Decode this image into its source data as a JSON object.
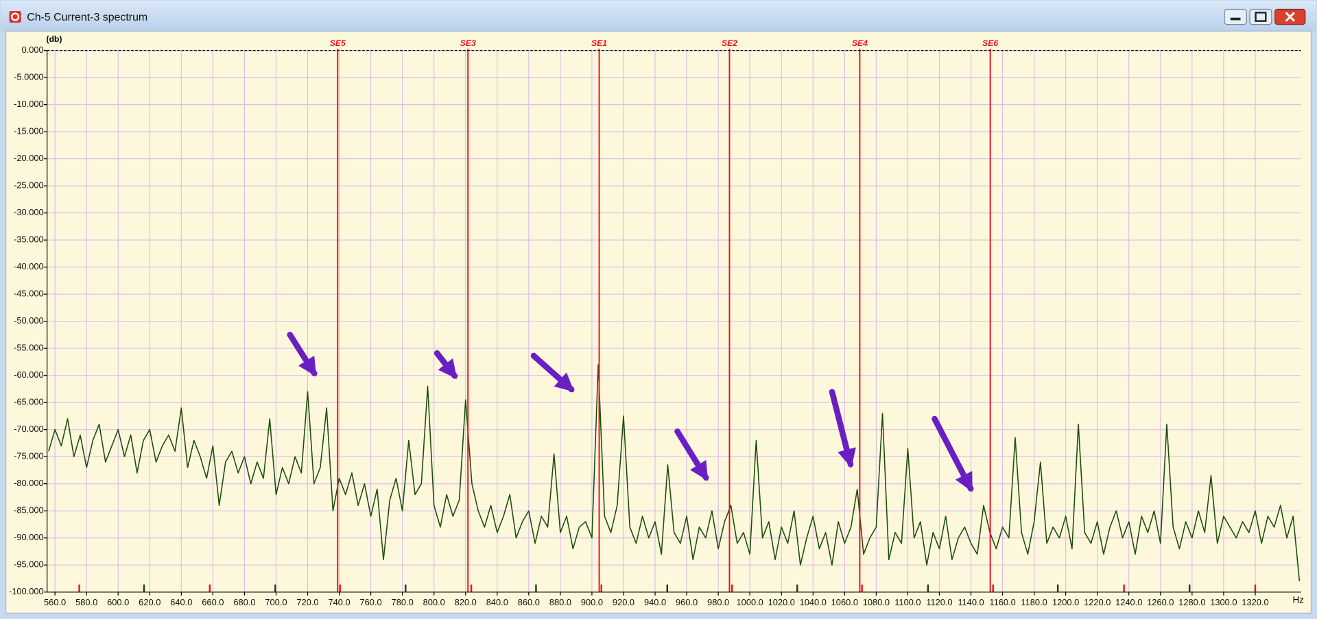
{
  "chart_data": {
    "type": "line",
    "title": "Ch-5 Current-3 spectrum",
    "ylabel": "(db)",
    "xlabel": "Hz",
    "color": "#1f4f0c",
    "grid": true,
    "xlim": [
      555,
      1349
    ],
    "ylim": [
      -100,
      0
    ],
    "xticks": [
      {
        "value": 560,
        "label": "560.0"
      },
      {
        "value": 580,
        "label": "580.0"
      },
      {
        "value": 600,
        "label": "600.0"
      },
      {
        "value": 620,
        "label": "620.0"
      },
      {
        "value": 640,
        "label": "640.0"
      },
      {
        "value": 660,
        "label": "660.0"
      },
      {
        "value": 680,
        "label": "680.0"
      },
      {
        "value": 700,
        "label": "700.0"
      },
      {
        "value": 720,
        "label": "720.0"
      },
      {
        "value": 740,
        "label": "740.0"
      },
      {
        "value": 760,
        "label": "760.0"
      },
      {
        "value": 780,
        "label": "780.0"
      },
      {
        "value": 800,
        "label": "800.0"
      },
      {
        "value": 820,
        "label": "820.0"
      },
      {
        "value": 840,
        "label": "840.0"
      },
      {
        "value": 860,
        "label": "860.0"
      },
      {
        "value": 880,
        "label": "880.0"
      },
      {
        "value": 900,
        "label": "900.0"
      },
      {
        "value": 920,
        "label": "920.0"
      },
      {
        "value": 940,
        "label": "940.0"
      },
      {
        "value": 960,
        "label": "960.0"
      },
      {
        "value": 980,
        "label": "980.0"
      },
      {
        "value": 1000,
        "label": "1000.0"
      },
      {
        "value": 1020,
        "label": "1020.0"
      },
      {
        "value": 1040,
        "label": "1040.0"
      },
      {
        "value": 1060,
        "label": "1060.0"
      },
      {
        "value": 1080,
        "label": "1080.0"
      },
      {
        "value": 1100,
        "label": "1100.0"
      },
      {
        "value": 1120,
        "label": "1120.0"
      },
      {
        "value": 1140,
        "label": "1140.0"
      },
      {
        "value": 1160,
        "label": "1160.0"
      },
      {
        "value": 1180,
        "label": "1180.0"
      },
      {
        "value": 1200,
        "label": "1200.0"
      },
      {
        "value": 1220,
        "label": "1220.0"
      },
      {
        "value": 1240,
        "label": "1240.0"
      },
      {
        "value": 1260,
        "label": "1260.0"
      },
      {
        "value": 1280,
        "label": "1280.0"
      },
      {
        "value": 1300,
        "label": "1300.0"
      },
      {
        "value": 1320,
        "label": "1320.0"
      }
    ],
    "yticks": [
      {
        "value": 0,
        "label": "0.000"
      },
      {
        "value": -5,
        "label": "-5.0000"
      },
      {
        "value": -10,
        "label": "-10.000"
      },
      {
        "value": -15,
        "label": "-15.000"
      },
      {
        "value": -20,
        "label": "-20.000"
      },
      {
        "value": -25,
        "label": "-25.000"
      },
      {
        "value": -30,
        "label": "-30.000"
      },
      {
        "value": -35,
        "label": "-35.000"
      },
      {
        "value": -40,
        "label": "-40.000"
      },
      {
        "value": -45,
        "label": "-45.000"
      },
      {
        "value": -50,
        "label": "-50.000"
      },
      {
        "value": -55,
        "label": "-55.000"
      },
      {
        "value": -60,
        "label": "-60.000"
      },
      {
        "value": -65,
        "label": "-65.000"
      },
      {
        "value": -70,
        "label": "-70.000"
      },
      {
        "value": -75,
        "label": "-75.000"
      },
      {
        "value": -80,
        "label": "-80.000"
      },
      {
        "value": -85,
        "label": "-85.000"
      },
      {
        "value": -90,
        "label": "-90.000"
      },
      {
        "value": -95,
        "label": "-95.000"
      },
      {
        "value": -100,
        "label": "-100.000"
      }
    ],
    "markers": [
      {
        "label": "SE5",
        "x": 739
      },
      {
        "label": "SE3",
        "x": 821.5
      },
      {
        "label": "SE1",
        "x": 904.6
      },
      {
        "label": "SE2",
        "x": 987.1
      },
      {
        "label": "SE4",
        "x": 1069.6
      },
      {
        "label": "SE6",
        "x": 1152.2
      }
    ],
    "marker_color": "#e8141c",
    "red_ticks": [
      575.4,
      658,
      740.5,
      823.6,
      906,
      988.7,
      1071,
      1154,
      1236.9,
      1320
    ],
    "dark_ticks": [
      616.4,
      699.5,
      782,
      864.6,
      947.7,
      1030,
      1112.8,
      1195,
      1278.4
    ],
    "x": [
      556,
      560,
      564,
      568,
      572,
      576,
      580,
      584,
      588,
      592,
      596,
      600,
      604,
      608,
      612,
      616,
      620,
      624,
      628,
      632,
      636,
      640,
      644,
      648,
      652,
      656,
      660,
      664,
      668,
      672,
      676,
      680,
      684,
      688,
      692,
      696,
      700,
      704,
      708,
      712,
      716,
      720,
      724,
      728,
      732,
      736,
      740,
      744,
      748,
      752,
      756,
      760,
      764,
      768,
      772,
      776,
      780,
      784,
      788,
      792,
      796,
      800,
      804,
      808,
      812,
      816,
      820,
      824,
      828,
      832,
      836,
      840,
      844,
      848,
      852,
      856,
      860,
      864,
      868,
      872,
      876,
      880,
      884,
      888,
      892,
      896,
      900,
      904,
      908,
      912,
      916,
      920,
      924,
      928,
      932,
      936,
      940,
      944,
      948,
      952,
      956,
      960,
      964,
      968,
      972,
      976,
      980,
      984,
      988,
      992,
      996,
      1000,
      1004,
      1008,
      1012,
      1016,
      1020,
      1024,
      1028,
      1032,
      1036,
      1040,
      1044,
      1048,
      1052,
      1056,
      1060,
      1064,
      1068,
      1072,
      1076,
      1080,
      1084,
      1088,
      1092,
      1096,
      1100,
      1104,
      1108,
      1112,
      1116,
      1120,
      1124,
      1128,
      1132,
      1136,
      1140,
      1144,
      1148,
      1152,
      1156,
      1160,
      1164,
      1168,
      1172,
      1176,
      1180,
      1184,
      1188,
      1192,
      1196,
      1200,
      1204,
      1208,
      1212,
      1216,
      1220,
      1224,
      1228,
      1232,
      1236,
      1240,
      1244,
      1248,
      1252,
      1256,
      1260,
      1264,
      1268,
      1272,
      1276,
      1280,
      1284,
      1288,
      1292,
      1296,
      1300,
      1304,
      1308,
      1312,
      1316,
      1320,
      1324,
      1328,
      1332,
      1336,
      1340,
      1344,
      1348
    ],
    "values": [
      -74,
      -70,
      -73,
      -68,
      -75,
      -71,
      -77,
      -72,
      -69,
      -76,
      -73,
      -70,
      -75,
      -71,
      -78,
      -72,
      -70,
      -76,
      -73,
      -71,
      -74,
      -66,
      -77,
      -72,
      -75,
      -79,
      -73,
      -84,
      -76,
      -74,
      -78,
      -75,
      -80,
      -76,
      -79,
      -68,
      -82,
      -77,
      -80,
      -75,
      -78,
      -63,
      -80,
      -77,
      -66,
      -85,
      -79,
      -82,
      -78,
      -84,
      -80,
      -86,
      -81,
      -94,
      -83,
      -79,
      -85,
      -72,
      -82,
      -80,
      -62,
      -84,
      -88,
      -82,
      -86,
      -83,
      -64.5,
      -80,
      -85,
      -88,
      -84,
      -89,
      -86,
      -82,
      -90,
      -87,
      -85,
      -91,
      -86,
      -88,
      -74.5,
      -89,
      -86,
      -92,
      -88,
      -87,
      -90,
      -58,
      -86,
      -89,
      -84,
      -67.5,
      -88,
      -91,
      -86,
      -90,
      -87,
      -93,
      -76.5,
      -89,
      -91,
      -86,
      -94,
      -88,
      -90,
      -85,
      -92,
      -87,
      -84,
      -91,
      -89,
      -93,
      -72,
      -90,
      -87,
      -94,
      -88,
      -91,
      -85,
      -95,
      -90,
      -86,
      -92,
      -89,
      -95,
      -87,
      -91,
      -88,
      -81,
      -93,
      -90,
      -88,
      -67,
      -94,
      -89,
      -91,
      -73.5,
      -90,
      -87,
      -95,
      -89,
      -92,
      -86,
      -94,
      -90,
      -88,
      -91,
      -93,
      -84,
      -89,
      -92,
      -88,
      -90,
      -71.5,
      -89,
      -93,
      -87,
      -76,
      -91,
      -88,
      -90,
      -86,
      -92,
      -69,
      -89,
      -91,
      -87,
      -93,
      -88,
      -85,
      -90,
      -87,
      -93,
      -86,
      -89,
      -85,
      -91,
      -69,
      -88,
      -92,
      -87,
      -90,
      -85,
      -89,
      -78.5,
      -91,
      -86,
      -88,
      -90,
      -87,
      -89,
      -85,
      -91,
      -86,
      -88,
      -84,
      -90,
      -86,
      -98
    ]
  }
}
